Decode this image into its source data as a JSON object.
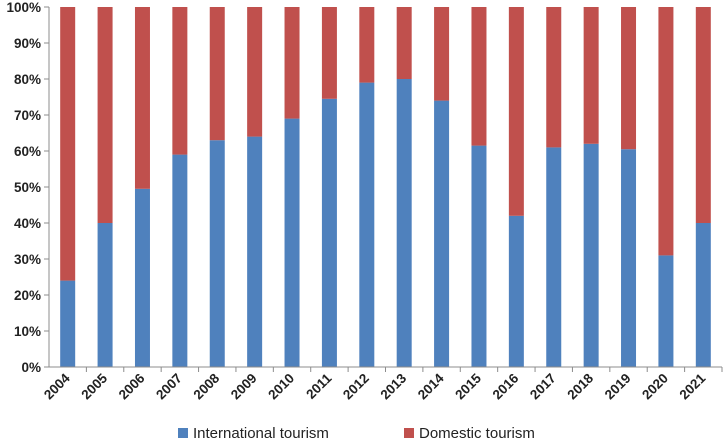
{
  "chart_data": {
    "type": "bar",
    "stacked": true,
    "categories": [
      "2004",
      "2005",
      "2006",
      "2007",
      "2008",
      "2009",
      "2010",
      "2011",
      "2012",
      "2013",
      "2014",
      "2015",
      "2016",
      "2017",
      "2018",
      "2019",
      "2020",
      "2021"
    ],
    "series": [
      {
        "name": "International tourism",
        "color": "#4F81BD",
        "values": [
          24,
          40,
          49.5,
          59,
          63,
          64,
          69,
          74.5,
          79,
          80,
          74,
          61.5,
          42,
          61,
          62,
          60.5,
          31,
          40
        ]
      },
      {
        "name": "Domestic tourism",
        "color": "#C0504D",
        "values": [
          76,
          60,
          50.5,
          41,
          37,
          36,
          31,
          25.5,
          21,
          20,
          26,
          38.5,
          58,
          39,
          38,
          39.5,
          69,
          60
        ]
      }
    ],
    "y_ticks": [
      "0%",
      "10%",
      "20%",
      "30%",
      "40%",
      "50%",
      "60%",
      "70%",
      "80%",
      "90%",
      "100%"
    ],
    "ylim": [
      0,
      100
    ],
    "y_unit": "%",
    "title": "",
    "xlabel": "",
    "ylabel": "",
    "grid": false,
    "legend_position": "bottom"
  }
}
